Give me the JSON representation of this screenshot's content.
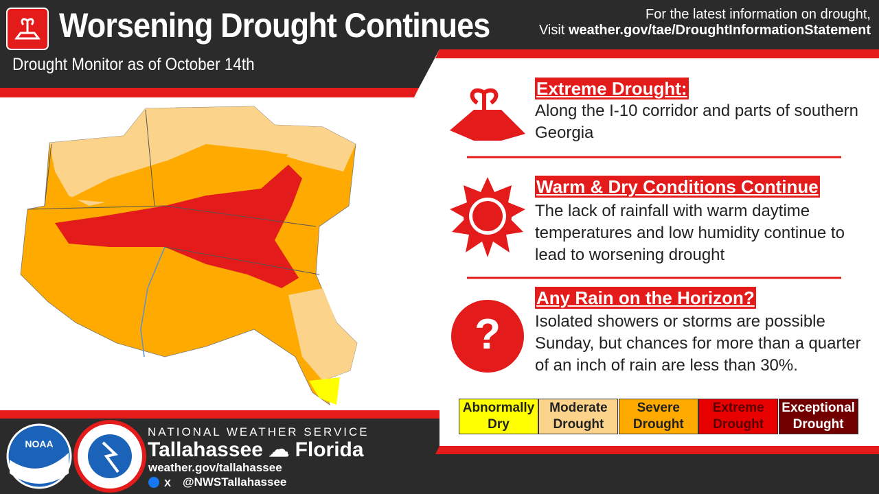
{
  "header": {
    "title": "Worsening Drought Continues",
    "subtitle": "Drought Monitor as of October 14th",
    "info_line": "For the latest information on drought,",
    "visit": "Visit",
    "url": "weather.gov/tae/DroughtInformationStatement"
  },
  "sections": [
    {
      "heading": "Extreme Drought:",
      "body": "Along the I-10 corridor and parts of southern Georgia"
    },
    {
      "heading": "Warm & Dry Conditions Continue",
      "body": "The lack of rainfall with warm daytime temperatures and low humidity continue to lead to worsening drought"
    },
    {
      "heading": "Any Rain on the Horizon?",
      "body": "Isolated showers or storms are possible Sunday, but chances for more than a quarter of an inch of rain are less than 30%."
    }
  ],
  "legend": [
    {
      "label": "Abnormally Dry",
      "color": "#ffff00",
      "text_color": "#222222"
    },
    {
      "label": "Moderate Drought",
      "color": "#fcd38a",
      "text_color": "#222222"
    },
    {
      "label": "Severe Drought",
      "color": "#ffaa00",
      "text_color": "#222222"
    },
    {
      "label": "Extreme Drought",
      "color": "#e60000",
      "text_color": "#5a0000"
    },
    {
      "label": "Exceptional Drought",
      "color": "#730000",
      "text_color": "#ffffff"
    }
  ],
  "footer": {
    "agency": "NATIONAL WEATHER SERVICE",
    "office_city": "Tallahassee",
    "office_state": "Florida",
    "website": "weather.gov/tallahassee",
    "social": "@NWSTallahassee",
    "noaa": "NOAA",
    "x_icon": "X"
  }
}
